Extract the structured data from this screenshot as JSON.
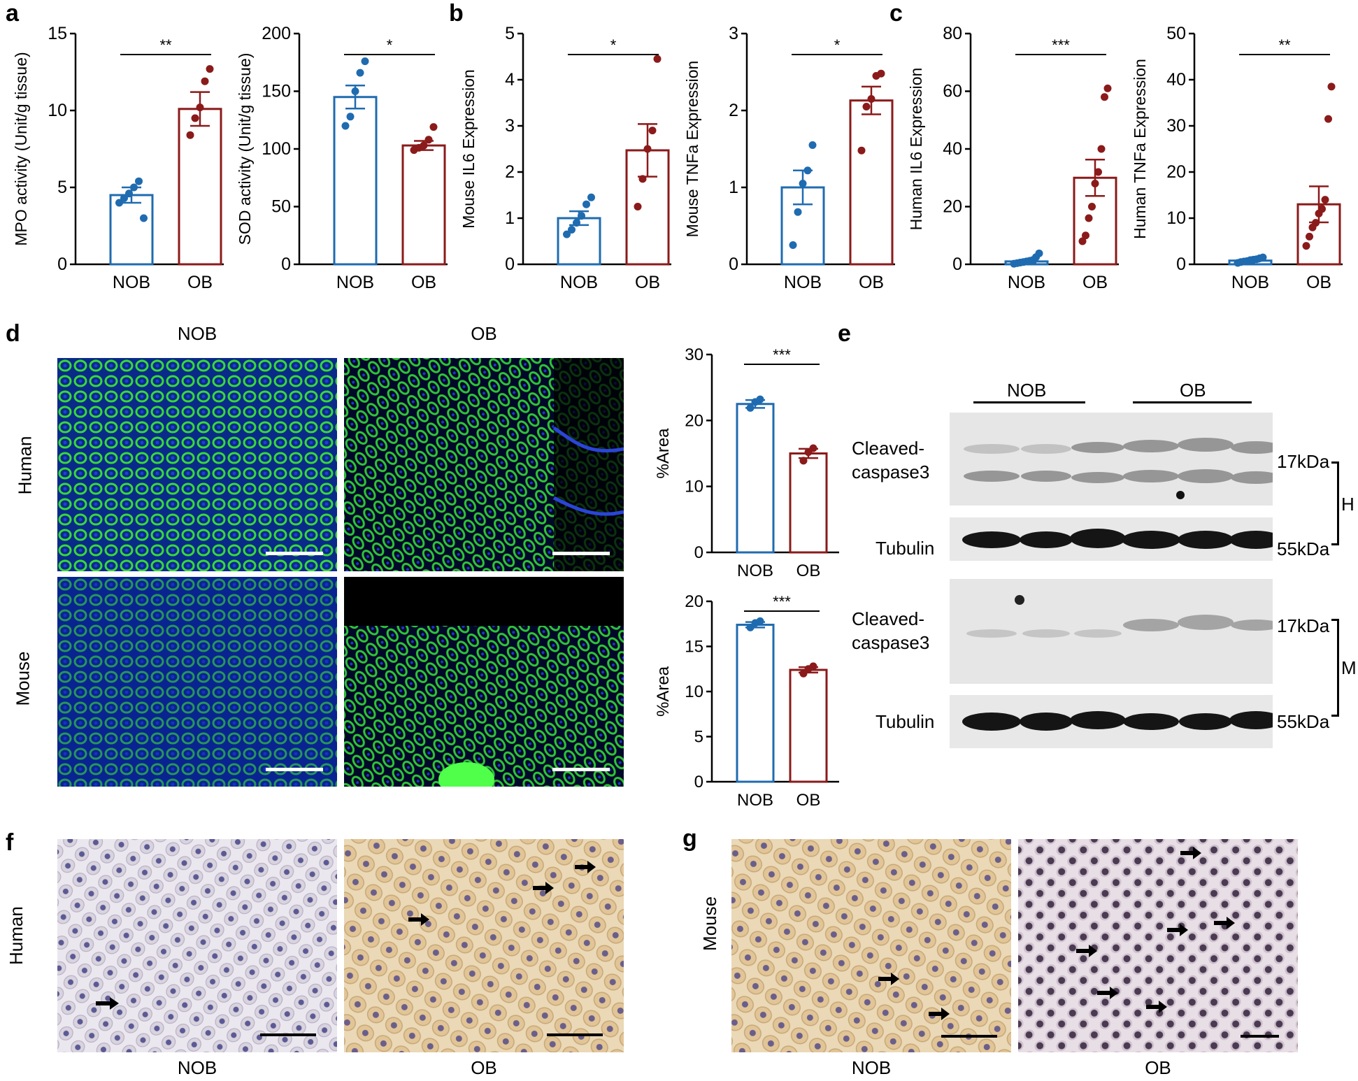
{
  "panels": {
    "a": "a",
    "b": "b",
    "c": "c",
    "d": "d",
    "e": "e",
    "f": "f",
    "g": "g"
  },
  "colors": {
    "nob": "#1f6bb0",
    "ob": "#8b1a1a"
  },
  "chart_data": [
    {
      "id": "a1",
      "type": "bar",
      "categories": [
        "NOB",
        "OB"
      ],
      "values": [
        4.5,
        10.1
      ],
      "sem": [
        0.5,
        1.1
      ],
      "points": [
        [
          4.0,
          4.3,
          4.6,
          5.0,
          5.4,
          3.0
        ],
        [
          8.4,
          9.5,
          10.2,
          11.9,
          12.7
        ]
      ],
      "ylabel": "MPO activity (Unit/g tissue)",
      "ylim": [
        0,
        15
      ],
      "yticks": [
        0,
        5,
        10,
        15
      ],
      "sig": "**"
    },
    {
      "id": "a2",
      "type": "bar",
      "categories": [
        "NOB",
        "OB"
      ],
      "values": [
        145,
        103
      ],
      "sem": [
        10,
        4
      ],
      "points": [
        [
          120,
          128,
          150,
          166,
          176
        ],
        [
          99,
          101,
          103,
          108,
          119
        ]
      ],
      "ylabel": "SOD activity (Unit/g tissue)",
      "ylim": [
        0,
        200
      ],
      "yticks": [
        0,
        50,
        100,
        150,
        200
      ],
      "sig": "*"
    },
    {
      "id": "b1",
      "type": "bar",
      "categories": [
        "NOB",
        "OB"
      ],
      "values": [
        1.0,
        2.47
      ],
      "sem": [
        0.15,
        0.57
      ],
      "points": [
        [
          0.65,
          0.75,
          0.9,
          1.05,
          1.3,
          1.45
        ],
        [
          1.25,
          1.85,
          2.5,
          2.9,
          4.45
        ]
      ],
      "ylabel": "Mouse IL6 Expression",
      "ylim": [
        0,
        5
      ],
      "yticks": [
        0,
        1,
        2,
        3,
        4,
        5
      ],
      "sig": "*"
    },
    {
      "id": "b2",
      "type": "bar",
      "categories": [
        "NOB",
        "OB"
      ],
      "values": [
        1.0,
        2.13
      ],
      "sem": [
        0.22,
        0.18
      ],
      "points": [
        [
          0.25,
          0.68,
          1.05,
          1.22,
          1.55
        ],
        [
          1.48,
          2.05,
          2.15,
          2.45,
          2.48
        ]
      ],
      "ylabel": "Mouse TNFa Expression",
      "ylim": [
        0,
        3
      ],
      "yticks": [
        0,
        1,
        2,
        3
      ],
      "sig": "*"
    },
    {
      "id": "c1",
      "type": "bar",
      "categories": [
        "NOB",
        "OB"
      ],
      "values": [
        1.0,
        30
      ],
      "sem": [
        0.4,
        6.3
      ],
      "points": [
        [
          0.2,
          0.4,
          0.6,
          0.8,
          1.0,
          1.2,
          1.5,
          2.5,
          3.8
        ],
        [
          8,
          10,
          16,
          20,
          28,
          32,
          40,
          58,
          61
        ]
      ],
      "ylabel": "Human IL6 Expression",
      "ylim": [
        0,
        80
      ],
      "yticks": [
        0,
        20,
        40,
        60,
        80
      ],
      "sig": "***"
    },
    {
      "id": "c2",
      "type": "bar",
      "categories": [
        "NOB",
        "OB"
      ],
      "values": [
        0.8,
        13
      ],
      "sem": [
        0.2,
        3.9
      ],
      "points": [
        [
          0.3,
          0.5,
          0.6,
          0.7,
          0.9,
          1.0,
          1.1,
          1.3,
          1.5
        ],
        [
          4,
          6,
          8,
          9,
          11,
          12,
          14,
          31.5,
          38.5
        ]
      ],
      "ylabel": "Human TNFa Expression",
      "ylim": [
        0,
        50
      ],
      "yticks": [
        0,
        10,
        20,
        30,
        40,
        50
      ],
      "sig": "**"
    },
    {
      "id": "d1",
      "type": "bar",
      "categories": [
        "NOB",
        "OB"
      ],
      "values": [
        22.5,
        15
      ],
      "sem": [
        0.6,
        0.7
      ],
      "points": [
        [
          21.9,
          22.8,
          23.2
        ],
        [
          13.9,
          15.2,
          15.8
        ]
      ],
      "ylabel": "%Area",
      "ylim": [
        0,
        30
      ],
      "yticks": [
        0,
        10,
        20,
        30
      ],
      "sig": "***"
    },
    {
      "id": "d2",
      "type": "bar",
      "categories": [
        "NOB",
        "OB"
      ],
      "values": [
        17.4,
        12.4
      ],
      "sem": [
        0.3,
        0.3
      ],
      "points": [
        [
          17.1,
          17.6,
          17.8
        ],
        [
          12.0,
          12.5,
          12.8
        ]
      ],
      "ylabel": "%Area",
      "ylim": [
        0,
        20
      ],
      "yticks": [
        0,
        5,
        10,
        15,
        20
      ],
      "sig": "***"
    }
  ],
  "panel_d": {
    "col_nob": "NOB",
    "col_ob": "OB",
    "row_human": "Human",
    "row_mouse": "Mouse"
  },
  "panel_e": {
    "group_nob": "NOB",
    "group_ob": "OB",
    "cleaved": "Cleaved-",
    "caspase": "caspase3",
    "tubulin": "Tubulin",
    "kda17": "17kDa",
    "kda55": "55kDa",
    "h": "H",
    "m": "M"
  },
  "panel_f": {
    "row": "Human",
    "nob": "NOB",
    "ob": "OB"
  },
  "panel_g": {
    "row": "Mouse",
    "nob": "NOB",
    "ob": "OB"
  }
}
